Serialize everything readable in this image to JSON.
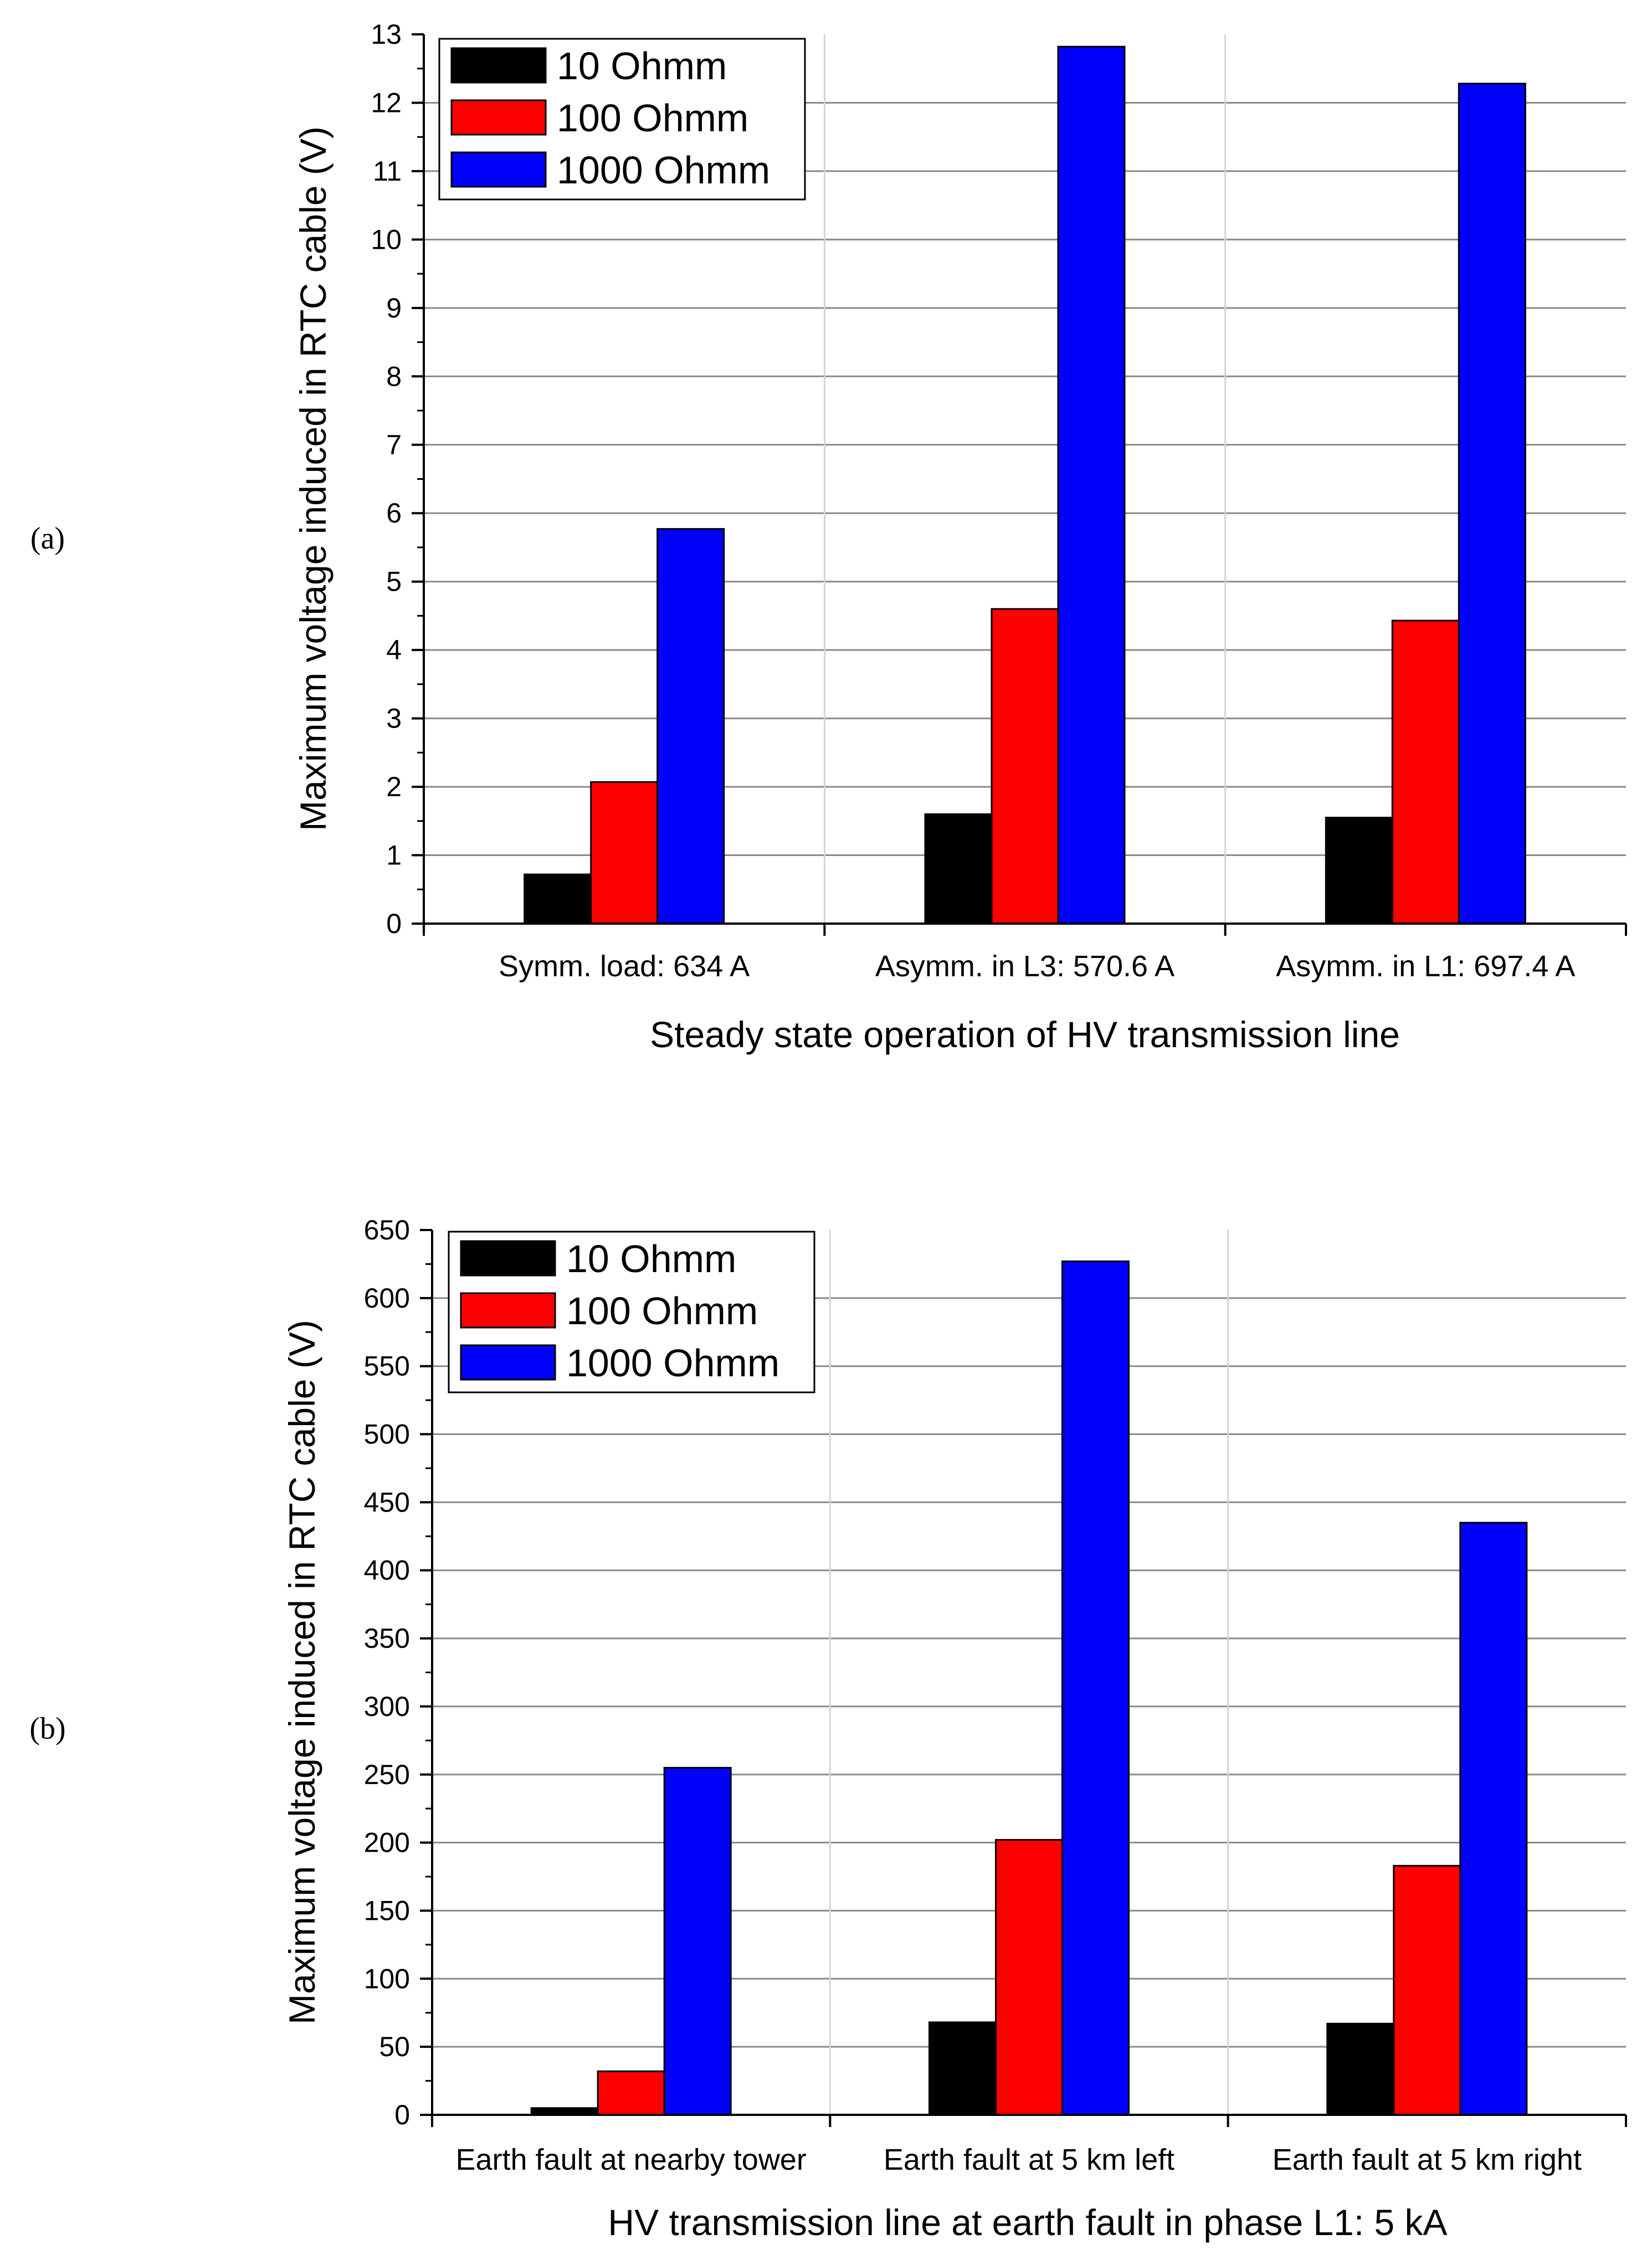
{
  "chart_data": [
    {
      "panel": "(a)",
      "type": "bar",
      "categories": [
        "Symm. load: 634 A",
        "Asymm. in L3: 570.6 A",
        "Asymm. in L1: 697.4 A"
      ],
      "series": [
        {
          "name": "10 Ohmm",
          "color": "#000000",
          "values": [
            0.72,
            1.6,
            1.55
          ]
        },
        {
          "name": "100 Ohmm",
          "color": "#ff0000",
          "values": [
            2.07,
            4.6,
            4.43
          ]
        },
        {
          "name": "1000 Ohmm",
          "color": "#0000ff",
          "values": [
            5.77,
            12.82,
            12.28
          ]
        }
      ],
      "title": "",
      "xlabel": "Steady state operation of HV transmission line",
      "ylabel": "Maximum voltage induced in RTC cable (V)",
      "ylim": [
        0,
        13
      ],
      "yticks": [
        "0",
        "1",
        "2",
        "3",
        "4",
        "5",
        "6",
        "7",
        "8",
        "9",
        "10",
        "11",
        "12",
        "13"
      ],
      "grid": true,
      "legend": "top-left"
    },
    {
      "panel": "(b)",
      "type": "bar",
      "categories": [
        "Earth fault at nearby tower",
        "Earth fault at 5 km left",
        "Earth fault at 5 km right"
      ],
      "series": [
        {
          "name": "10 Ohmm",
          "color": "#000000",
          "values": [
            5,
            68,
            67
          ]
        },
        {
          "name": "100 Ohmm",
          "color": "#ff0000",
          "values": [
            32,
            202,
            183
          ]
        },
        {
          "name": "1000 Ohmm",
          "color": "#0000ff",
          "values": [
            255,
            627,
            435
          ]
        }
      ],
      "title": "",
      "xlabel": "HV transmission line at earth fault in phase L1: 5 kA",
      "ylabel": "Maximum voltage induced in RTC cable (V)",
      "ylim": [
        0,
        650
      ],
      "yticks": [
        "0",
        "50",
        "100",
        "150",
        "200",
        "250",
        "300",
        "350",
        "400",
        "450",
        "500",
        "550",
        "600",
        "650"
      ],
      "grid": true,
      "legend": "top-left"
    }
  ]
}
